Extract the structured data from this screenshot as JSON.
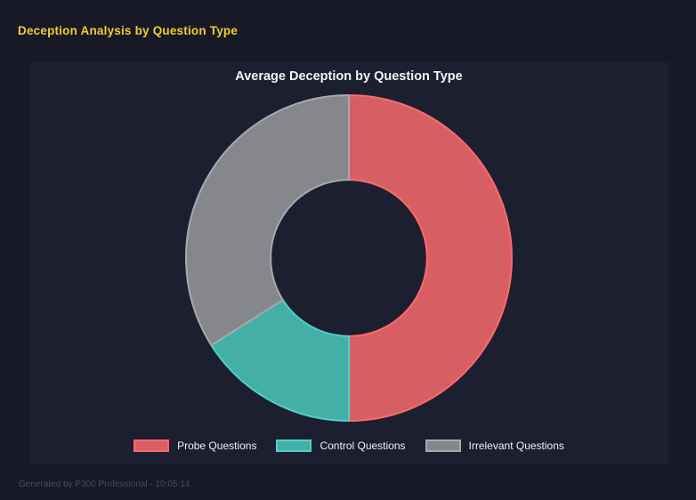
{
  "page": {
    "title": "Deception Analysis by Question Type",
    "footer": "Generated by P300 Professional - 10:05:14"
  },
  "chart_data": {
    "type": "pie",
    "variant": "doughnut",
    "title": "Average Deception by Question Type",
    "categories": [
      "Probe Questions",
      "Control Questions",
      "Irrelevant Questions"
    ],
    "values": [
      50,
      16,
      34
    ],
    "values_unit": "percent_of_circle",
    "colors": [
      "#d75f64",
      "#44afa7",
      "#86868d"
    ],
    "border_colors": [
      "#ff696d",
      "#4fd1c8",
      "#a8a8ae"
    ],
    "start_angle_deg": 0,
    "direction": "clockwise",
    "cutout_ratio": 0.48,
    "legend_position": "bottom"
  },
  "legend": {
    "items": [
      {
        "label": "Probe Questions",
        "fill": "#d75f64",
        "border": "#ff696d"
      },
      {
        "label": "Control Questions",
        "fill": "#44afa7",
        "border": "#4fd1c8"
      },
      {
        "label": "Irrelevant Questions",
        "fill": "#86868d",
        "border": "#a8a8ae"
      }
    ]
  },
  "theme": {
    "page_bg": "#171a26",
    "panel_bg": "#1c1f2f",
    "accent_yellow": "#efcd2d",
    "text_light": "#f0f1f3",
    "footer_color": "#454b59"
  }
}
